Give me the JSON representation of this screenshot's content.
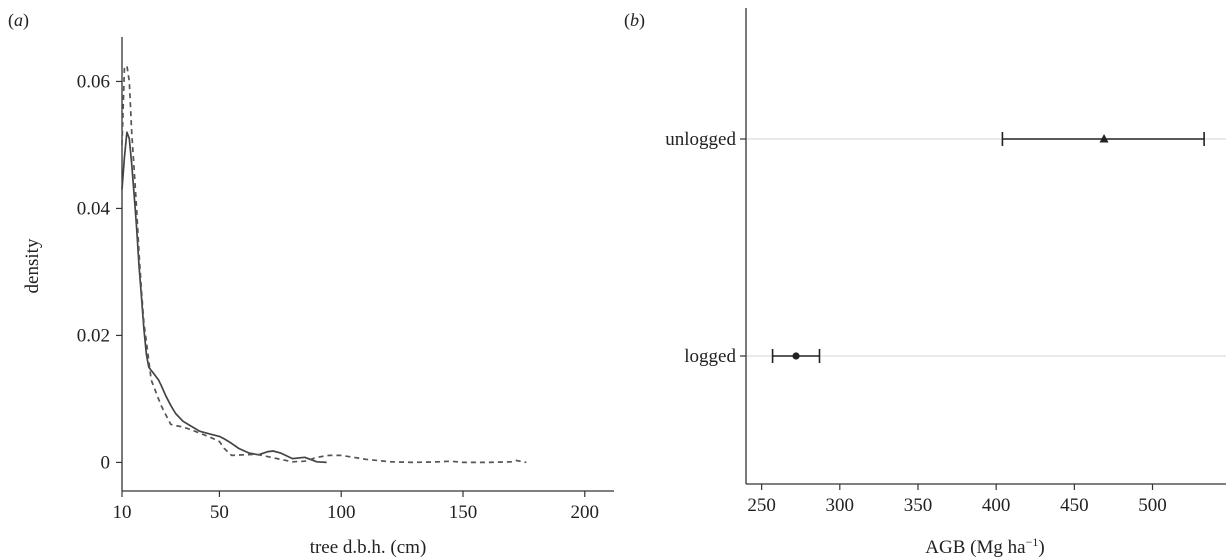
{
  "panels": {
    "a_label_open": "(",
    "a_label_letter": "a",
    "a_label_close": ")",
    "b_label_open": "(",
    "b_label_letter": "b",
    "b_label_close": ")"
  },
  "chart_data": [
    {
      "type": "line",
      "xlabel": "tree d.b.h. (cm)",
      "ylabel": "density",
      "xlim": [
        10,
        212
      ],
      "ylim": [
        -0.0045,
        0.067
      ],
      "xticks": [
        10,
        50,
        100,
        150,
        200
      ],
      "yticks": [
        0,
        0.02,
        0.04,
        0.06
      ],
      "ytick_labels": [
        "0",
        "0.02",
        "0.04",
        "0.06"
      ],
      "series": [
        {
          "style": "solid",
          "color": "#444444",
          "x": [
            10,
            11,
            12,
            13,
            14,
            15,
            16,
            17,
            18,
            19,
            20,
            21,
            22,
            23,
            24,
            25,
            26,
            28,
            30,
            32,
            35,
            38,
            42,
            46,
            50,
            52,
            55,
            58,
            62,
            66,
            70,
            72,
            75,
            80,
            85,
            90,
            94
          ],
          "y": [
            0.043,
            0.048,
            0.052,
            0.051,
            0.047,
            0.042,
            0.037,
            0.031,
            0.026,
            0.021,
            0.017,
            0.015,
            0.0145,
            0.014,
            0.0135,
            0.013,
            0.0122,
            0.0105,
            0.009,
            0.0077,
            0.0065,
            0.0058,
            0.0049,
            0.0045,
            0.0041,
            0.0037,
            0.003,
            0.0022,
            0.0015,
            0.0012,
            0.0017,
            0.0018,
            0.0015,
            0.0006,
            0.0008,
            0.0001,
            0.0
          ]
        },
        {
          "style": "dashed",
          "color": "#555555",
          "x": [
            10,
            11,
            12,
            13,
            14,
            15,
            16,
            17,
            18,
            19,
            20,
            21,
            22,
            24,
            26,
            28,
            30,
            32,
            35,
            38,
            42,
            46,
            50,
            52,
            55,
            60,
            65,
            70,
            75,
            80,
            85,
            90,
            95,
            100,
            105,
            110,
            115,
            120,
            130,
            140,
            145,
            150,
            160,
            170,
            172,
            176
          ],
          "y": [
            0.05,
            0.062,
            0.0625,
            0.06,
            0.052,
            0.046,
            0.04,
            0.033,
            0.027,
            0.022,
            0.019,
            0.016,
            0.013,
            0.011,
            0.009,
            0.0075,
            0.006,
            0.0058,
            0.0056,
            0.0052,
            0.0046,
            0.004,
            0.0033,
            0.0022,
            0.0011,
            0.0012,
            0.0013,
            0.0009,
            0.0005,
            0.0001,
            0.0002,
            0.0008,
            0.0011,
            0.0011,
            0.0008,
            0.0005,
            0.0003,
            0.0001,
            0.0,
            0.0001,
            0.0002,
            0.0,
            0.0,
            0.0001,
            0.0003,
            0.0
          ]
        }
      ]
    },
    {
      "type": "scatter",
      "subtype": "point-range",
      "xlabel_main": "AGB (Mg ha",
      "xlabel_sup": "−1",
      "xlabel_close": ")",
      "xlim": [
        240,
        547
      ],
      "xticks": [
        250,
        300,
        350,
        400,
        450,
        500
      ],
      "categories": [
        "logged",
        "unlogged"
      ],
      "points": [
        {
          "category": "logged",
          "estimate": 272,
          "lower": 257,
          "upper": 287,
          "marker": "circle"
        },
        {
          "category": "unlogged",
          "estimate": 469,
          "lower": 404,
          "upper": 533,
          "marker": "triangle"
        }
      ],
      "grid": "horizontal"
    }
  ]
}
